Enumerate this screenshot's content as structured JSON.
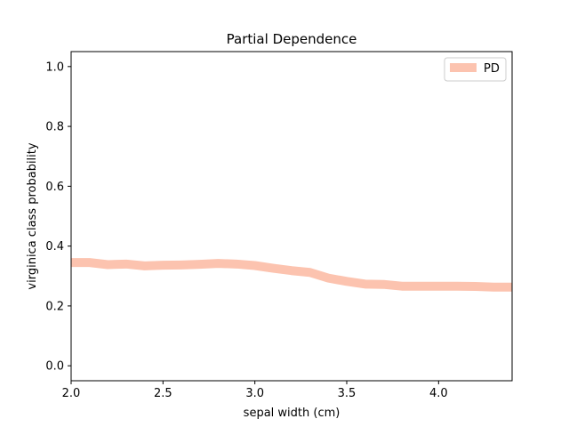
{
  "chart_data": {
    "type": "line",
    "title": "Partial Dependence",
    "xlabel": "sepal width (cm)",
    "ylabel": "virginica class probability",
    "xlim": [
      2.0,
      4.4
    ],
    "ylim": [
      -0.05,
      1.05
    ],
    "xticks": [
      "2.0",
      "2.5",
      "3.0",
      "3.5",
      "4.0"
    ],
    "yticks": [
      "0.0",
      "0.2",
      "0.4",
      "0.6",
      "0.8",
      "1.0"
    ],
    "legend": {
      "position": "top-right"
    },
    "grid": false,
    "series": [
      {
        "name": "PD",
        "color": "#fcc3af",
        "x": [
          2.0,
          2.1,
          2.2,
          2.3,
          2.4,
          2.5,
          2.6,
          2.7,
          2.8,
          2.9,
          3.0,
          3.1,
          3.2,
          3.3,
          3.4,
          3.5,
          3.6,
          3.7,
          3.8,
          3.9,
          4.0,
          4.1,
          4.2,
          4.3,
          4.4
        ],
        "y": [
          0.345,
          0.345,
          0.338,
          0.34,
          0.334,
          0.336,
          0.337,
          0.339,
          0.342,
          0.34,
          0.335,
          0.326,
          0.318,
          0.312,
          0.293,
          0.282,
          0.273,
          0.272,
          0.266,
          0.266,
          0.266,
          0.266,
          0.265,
          0.263,
          0.263
        ]
      }
    ]
  }
}
